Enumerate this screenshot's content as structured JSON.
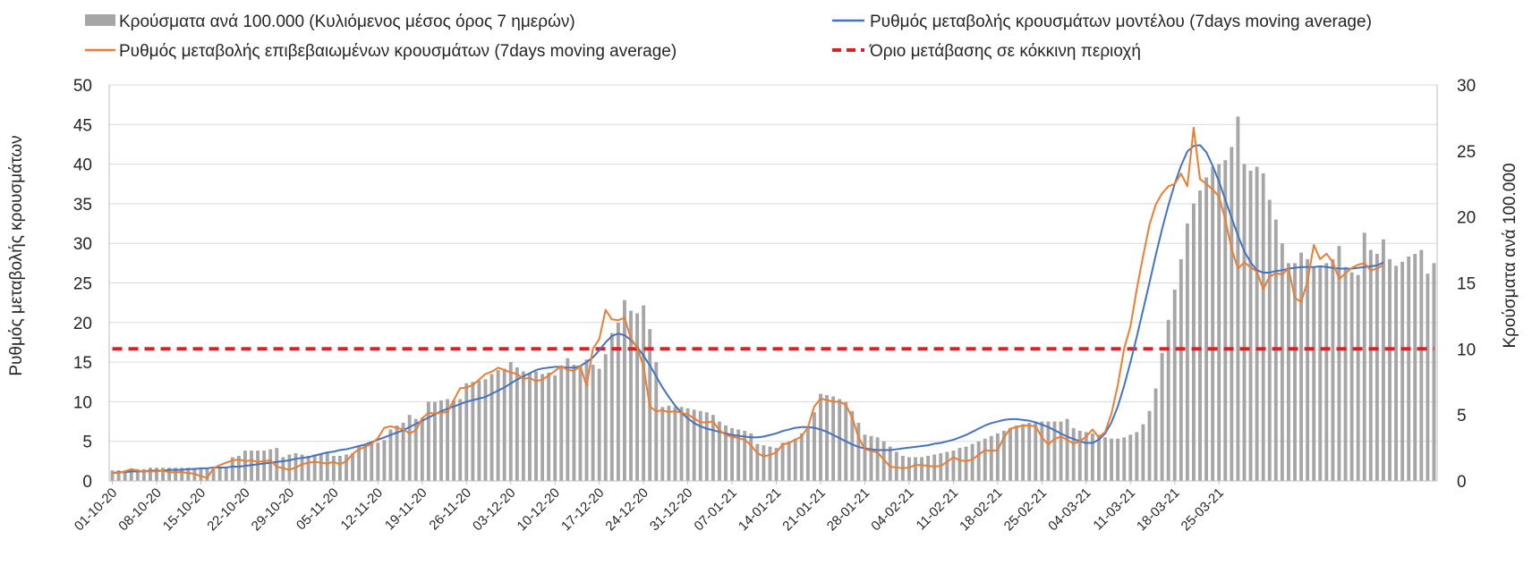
{
  "legend": {
    "bars_label": "Κρούσματα ανά 100.000 (Κυλιόμενος μέσος όρος 7 ημερών)",
    "model_label": "Ρυθμός μεταβολής κρουσμάτων μοντέλου (7days moving average)",
    "confirmed_label": "Ρυθμός μεταβολής επιβεβαιωμένων κρουσμάτων (7days moving average)",
    "threshold_label": "Όριο μετάβασης σε κόκκινη περιοχή"
  },
  "colors": {
    "bars": "#a6a6a6",
    "model_line": "#4472c4",
    "confirmed_line": "#ed7d31",
    "threshold": "#e02020",
    "grid": "#d9d9d9",
    "axis": "#bfbfbf"
  },
  "chart_data": {
    "type": "bar",
    "ylabel": "Ρυθμός μεταβολής κρουσμάτων",
    "y2label": "Κρούσματα ανά 100.000",
    "ylim": [
      0,
      50
    ],
    "y2lim": [
      0,
      30
    ],
    "yticks": [
      "0",
      "5",
      "10",
      "15",
      "20",
      "25",
      "30",
      "35",
      "40",
      "45",
      "50"
    ],
    "y2ticks": [
      "0",
      "5",
      "10",
      "15",
      "20",
      "25",
      "30"
    ],
    "grid": true,
    "legend_position": "top",
    "start_date": "2020-10-01",
    "x_tick_labels": [
      "01-10-20",
      "08-10-20",
      "15-10-20",
      "22-10-20",
      "29-10-20",
      "05-11-20",
      "12-11-20",
      "19-11-20",
      "26-11-20",
      "03-12-20",
      "10-12-20",
      "17-12-20",
      "24-12-20",
      "31-12-20",
      "07-01-21",
      "14-01-21",
      "21-01-21",
      "28-01-21",
      "04-02-21",
      "11-02-21",
      "18-02-21",
      "25-02-21",
      "04-03-21",
      "11-03-21",
      "18-03-21",
      "25-03-21"
    ],
    "series": [
      {
        "name": "Κρούσματα ανά 100.000 (Κυλιόμενος μέσος όρος 7 ημερών)",
        "type": "bar",
        "axis": "right",
        "values": [
          0.8,
          0.8,
          0.8,
          0.9,
          0.9,
          0.9,
          1.0,
          1.0,
          1.0,
          1.0,
          1.0,
          1.0,
          1.0,
          1.0,
          1.0,
          1.0,
          1.0,
          1.0,
          1.0,
          1.8,
          1.9,
          2.3,
          2.3,
          2.3,
          2.3,
          2.4,
          2.5,
          1.8,
          2.0,
          2.1,
          2.0,
          1.9,
          2.0,
          2.0,
          2.1,
          1.9,
          1.9,
          2.0,
          2.1,
          2.6,
          2.7,
          2.8,
          2.9,
          3.1,
          3.9,
          4.2,
          4.4,
          5.0,
          4.7,
          4.8,
          6.0,
          6.0,
          6.1,
          6.2,
          6.1,
          6.2,
          7.4,
          7.5,
          7.6,
          7.7,
          8.1,
          8.4,
          8.5,
          9.0,
          8.6,
          8.3,
          8.2,
          8.3,
          8.1,
          8.2,
          8.0,
          8.6,
          9.3,
          8.8,
          8.7,
          9.2,
          8.8,
          8.5,
          9.6,
          11.2,
          12.0,
          13.7,
          12.9,
          12.7,
          13.3,
          11.5,
          9.0,
          5.6,
          5.7,
          5.6,
          5.6,
          5.5,
          5.4,
          5.3,
          5.2,
          5.0,
          4.5,
          4.2,
          4.0,
          3.9,
          3.8,
          3.6,
          2.8,
          2.7,
          2.6,
          2.5,
          2.9,
          3.0,
          3.2,
          3.6,
          4.0,
          5.2,
          6.6,
          6.5,
          6.4,
          6.2,
          6.0,
          5.3,
          4.4,
          3.5,
          3.4,
          3.3,
          3.0,
          2.6,
          2.2,
          1.9,
          1.8,
          1.8,
          1.8,
          1.9,
          2.0,
          2.1,
          2.2,
          2.3,
          2.5,
          2.6,
          2.8,
          3.0,
          3.2,
          3.4,
          3.6,
          3.8,
          4.0,
          4.2,
          4.3,
          4.4,
          4.5,
          4.5,
          4.5,
          4.5,
          4.5,
          4.7,
          4.0,
          3.8,
          3.7,
          3.6,
          3.5,
          3.3,
          3.2,
          3.2,
          3.3,
          3.5,
          3.7,
          4.3,
          5.3,
          7.0,
          9.7,
          12.2,
          14.5,
          16.8,
          19.5,
          21.0,
          22.0,
          23.0,
          23.8,
          24.0,
          24.3,
          25.3,
          27.6,
          24.0,
          23.5,
          23.8,
          23.3,
          21.3,
          19.8,
          18.0,
          16.5,
          16.5,
          17.3,
          16.8,
          16.2,
          16.3,
          16.5,
          16.8,
          17.8,
          16.2,
          15.8,
          15.6,
          18.8,
          17.5,
          17.2,
          18.3,
          16.8,
          16.3,
          16.6,
          17.0,
          17.2,
          17.5,
          15.7,
          16.5
        ]
      },
      {
        "name": "Ρυθμός μεταβολής κρουσμάτων μοντέλου (7days moving average)",
        "type": "line",
        "axis": "left",
        "values": [
          1.0,
          1.1,
          1.1,
          1.2,
          1.2,
          1.2,
          1.3,
          1.3,
          1.3,
          1.4,
          1.4,
          1.4,
          1.5,
          1.5,
          1.6,
          1.6,
          1.7,
          1.7,
          1.7,
          1.8,
          1.8,
          1.9,
          2.0,
          2.1,
          2.2,
          2.3,
          2.4,
          2.5,
          2.6,
          2.8,
          2.9,
          3.0,
          3.2,
          3.4,
          3.6,
          3.7,
          3.9,
          4.0,
          4.2,
          4.4,
          4.6,
          4.9,
          5.2,
          5.5,
          5.8,
          6.1,
          6.4,
          6.8,
          7.2,
          7.6,
          8.0,
          8.4,
          8.8,
          9.1,
          9.4,
          9.7,
          10.0,
          10.2,
          10.4,
          10.6,
          11.0,
          11.4,
          11.8,
          12.3,
          12.8,
          13.2,
          13.6,
          14.0,
          14.2,
          14.3,
          14.4,
          14.4,
          14.3,
          14.3,
          14.5,
          15.0,
          15.6,
          16.5,
          17.5,
          18.3,
          18.6,
          18.4,
          17.8,
          16.9,
          15.8,
          14.6,
          13.2,
          11.8,
          10.6,
          9.5,
          8.6,
          7.9,
          7.3,
          6.9,
          6.6,
          6.4,
          6.2,
          6.0,
          5.8,
          5.7,
          5.6,
          5.5,
          5.5,
          5.6,
          5.8,
          6.0,
          6.3,
          6.5,
          6.7,
          6.8,
          6.8,
          6.7,
          6.5,
          6.2,
          5.8,
          5.4,
          5.0,
          4.6,
          4.3,
          4.1,
          4.0,
          3.9,
          3.9,
          3.9,
          4.0,
          4.1,
          4.2,
          4.3,
          4.4,
          4.5,
          4.7,
          4.8,
          5.0,
          5.2,
          5.5,
          5.8,
          6.2,
          6.6,
          7.0,
          7.3,
          7.5,
          7.7,
          7.8,
          7.8,
          7.7,
          7.6,
          7.4,
          7.1,
          6.8,
          6.4,
          6.0,
          5.6,
          5.3,
          5.0,
          4.8,
          4.8,
          5.2,
          6.0,
          7.4,
          9.4,
          12.0,
          15.0,
          18.2,
          21.6,
          25.0,
          28.5,
          31.8,
          34.8,
          37.5,
          39.8,
          41.6,
          42.3,
          42.4,
          41.5,
          39.8,
          37.8,
          35.5,
          33.2,
          31.0,
          29.0,
          27.6,
          26.6,
          26.3,
          26.3,
          26.5,
          26.6,
          26.8,
          26.9,
          27.0,
          27.0,
          27.0,
          27.1,
          27.0,
          26.9,
          26.8,
          26.8,
          26.8,
          26.9,
          27.0,
          27.1,
          27.2,
          27.6
        ]
      },
      {
        "name": "Ρυθμός μεταβολής επιβεβαιωμένων κρουσμάτων (7days moving average)",
        "type": "line",
        "axis": "left",
        "values": [
          1.0,
          1.0,
          1.2,
          1.5,
          1.3,
          1.2,
          1.2,
          1.2,
          1.3,
          1.1,
          1.1,
          1.1,
          1.0,
          0.9,
          0.6,
          0.4,
          1.6,
          2.0,
          2.3,
          2.6,
          2.7,
          2.5,
          2.6,
          2.4,
          2.5,
          2.6,
          1.8,
          1.6,
          1.4,
          1.7,
          2.1,
          2.3,
          2.4,
          2.3,
          2.2,
          2.4,
          2.1,
          2.5,
          3.4,
          4.0,
          4.3,
          4.7,
          5.4,
          6.7,
          6.9,
          6.7,
          6.5,
          6.0,
          6.4,
          7.9,
          8.6,
          8.5,
          8.6,
          8.7,
          10.2,
          11.7,
          11.8,
          12.1,
          12.8,
          13.5,
          13.8,
          14.3,
          14.0,
          13.7,
          13.5,
          12.9,
          13.0,
          12.6,
          12.8,
          13.3,
          13.9,
          14.5,
          14.0,
          13.9,
          14.5,
          12.0,
          16.7,
          17.9,
          21.6,
          20.4,
          20.3,
          20.6,
          18.0,
          16.8,
          14.5,
          9.4,
          8.8,
          8.9,
          8.7,
          8.8,
          8.6,
          8.4,
          7.9,
          7.4,
          7.4,
          7.5,
          6.4,
          5.8,
          5.6,
          5.4,
          5.2,
          4.5,
          3.5,
          3.1,
          3.3,
          3.6,
          4.6,
          4.8,
          5.2,
          5.6,
          6.8,
          9.4,
          10.4,
          10.2,
          10.0,
          10.0,
          9.6,
          8.0,
          5.5,
          4.0,
          3.8,
          3.6,
          2.7,
          1.8,
          1.7,
          1.6,
          1.7,
          2.0,
          2.0,
          1.9,
          1.8,
          1.9,
          2.4,
          3.0,
          2.6,
          2.5,
          2.7,
          3.3,
          3.9,
          3.8,
          3.9,
          5.5,
          6.6,
          6.8,
          7.0,
          7.0,
          6.9,
          5.5,
          4.6,
          5.3,
          5.6,
          5.2,
          4.7,
          5.0,
          5.6,
          6.5,
          5.5,
          6.2,
          8.5,
          12.1,
          16.7,
          19.5,
          24.2,
          28.4,
          32.3,
          34.9,
          36.3,
          37.2,
          37.5,
          38.8,
          37.2,
          44.6,
          38.1,
          37.5,
          36.8,
          35.9,
          33.0,
          29.3,
          26.8,
          27.6,
          27.0,
          26.4,
          24.2,
          25.8,
          26.2,
          26.1,
          26.8,
          23.1,
          22.6,
          25.2,
          29.8,
          28.0,
          28.7,
          27.6,
          25.5,
          26.2,
          26.9,
          27.3,
          27.5,
          26.6,
          26.8,
          27.3
        ]
      },
      {
        "name": "Όριο μετάβασης σε κόκκινη περιοχή",
        "type": "line",
        "axis": "left",
        "value": 16.67
      }
    ]
  }
}
